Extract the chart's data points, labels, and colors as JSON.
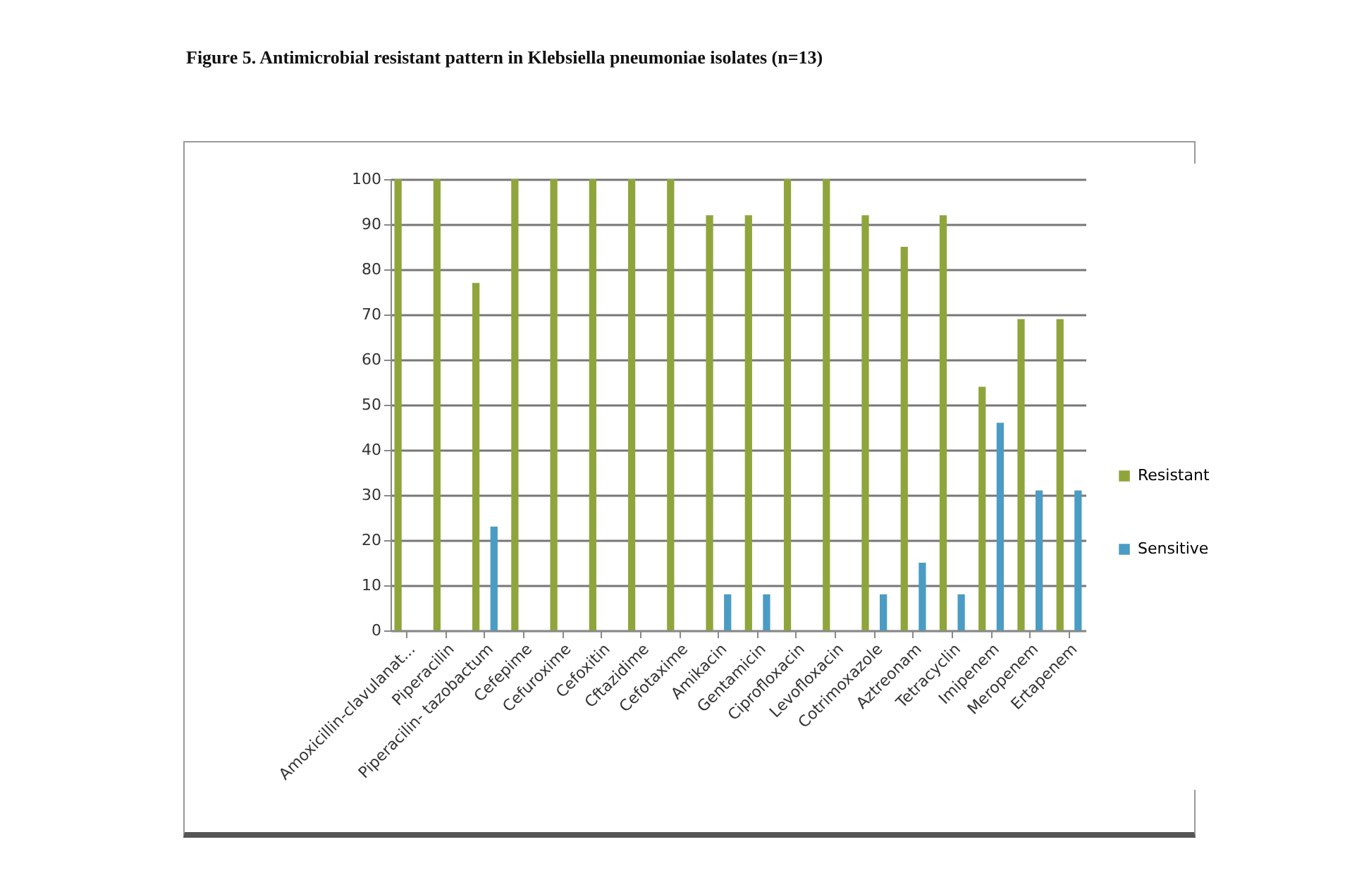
{
  "chart_data": {
    "type": "bar",
    "title": "Figure 5. Antimicrobial resistant pattern in Klebsiella pneumoniae isolates (n=13)",
    "categories": [
      "Amoxicillin-clavulanat...",
      "Piperacilin",
      "Piperacilin- tazobactum",
      "Cefepime",
      "Cefuroxime",
      "Cefoxitin",
      "Cftazidime",
      "Cefotaxime",
      "Amikacin",
      "Gentamicin",
      "Ciprofloxacin",
      "Levofloxacin",
      "Cotrimoxazole",
      "Aztreonam",
      "Tetracyclin",
      "Imipenem",
      "Meropenem",
      "Ertapenem"
    ],
    "series": [
      {
        "name": "Resistant",
        "color": "#8fa53c",
        "values": [
          100,
          100,
          77,
          100,
          100,
          100,
          100,
          100,
          92,
          92,
          100,
          100,
          92,
          85,
          92,
          54,
          69,
          69
        ]
      },
      {
        "name": "Sensitive",
        "color": "#4b9cc4",
        "values": [
          0,
          0,
          23,
          0,
          0,
          0,
          0,
          0,
          8,
          8,
          0,
          0,
          8,
          15,
          8,
          46,
          31,
          31
        ]
      }
    ],
    "ylim": [
      0,
      100
    ],
    "yticks": [
      0,
      10,
      20,
      30,
      40,
      50,
      60,
      70,
      80,
      90,
      100
    ],
    "grid": "y",
    "legend": "right"
  }
}
